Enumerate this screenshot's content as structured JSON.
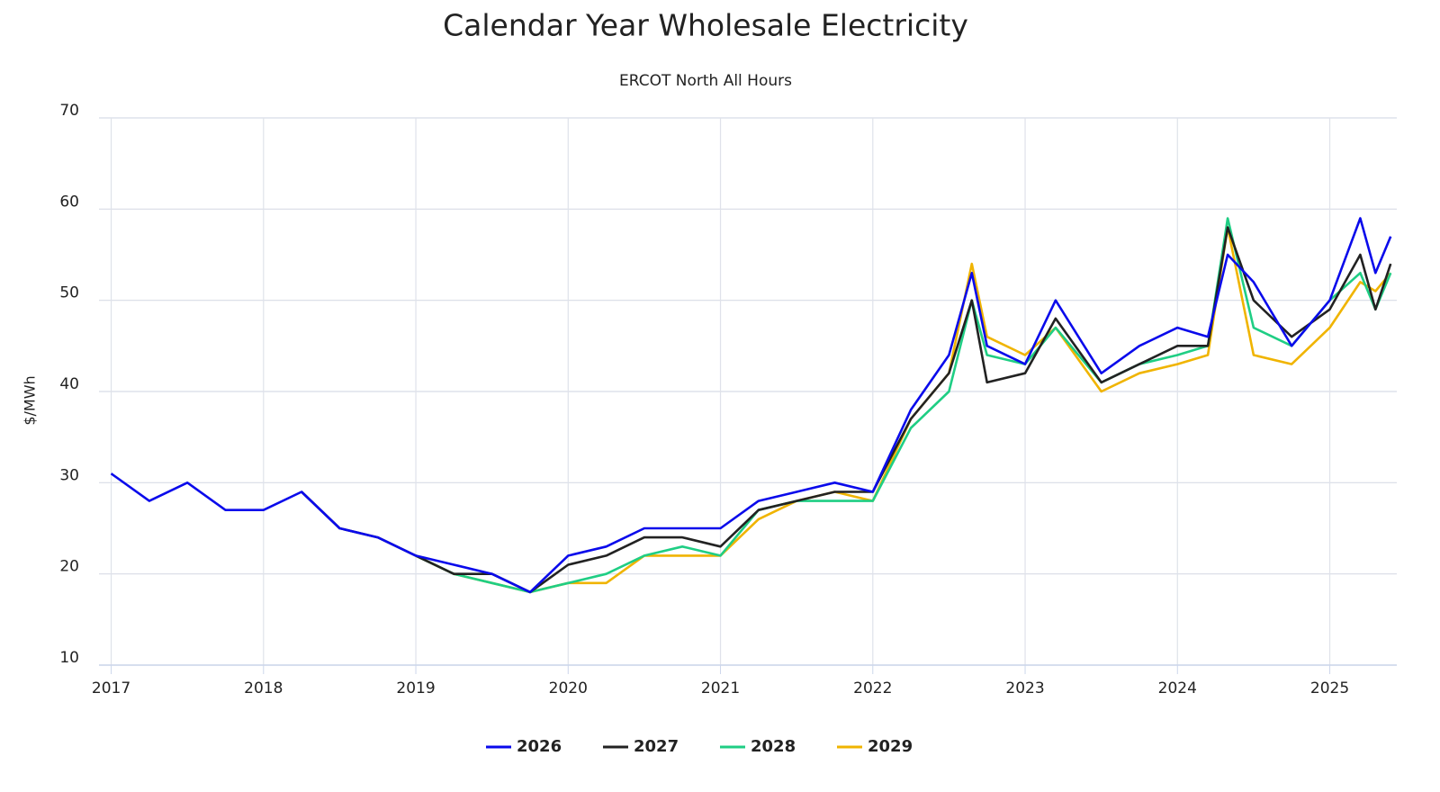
{
  "chart_data": {
    "type": "line",
    "title": "Calendar Year Wholesale Electricity",
    "subtitle": "ERCOT North All Hours",
    "y_label": "$/MWh",
    "x": [
      2017,
      2017.25,
      2017.5,
      2017.75,
      2018,
      2018.25,
      2018.5,
      2018.75,
      2019,
      2019.25,
      2019.5,
      2019.75,
      2020,
      2020.25,
      2020.5,
      2020.75,
      2021,
      2021.25,
      2021.5,
      2021.75,
      2022,
      2022.25,
      2022.5,
      2022.65,
      2022.75,
      2023,
      2023.2,
      2023.5,
      2023.75,
      2024,
      2024.2,
      2024.33,
      2024.5,
      2024.75,
      2025,
      2025.2,
      2025.3,
      2025.4
    ],
    "series": [
      {
        "name": "2026",
        "color": "#0a0aeb",
        "values": [
          31,
          28,
          30,
          27,
          27,
          29,
          25,
          24,
          22,
          21,
          20,
          18,
          22,
          23,
          25,
          25,
          25,
          28,
          29,
          30,
          29,
          38,
          44,
          53,
          45,
          43,
          50,
          42,
          45,
          47,
          46,
          55,
          52,
          45,
          50,
          59,
          53,
          57
        ]
      },
      {
        "name": "2027",
        "color": "#222222",
        "values": [
          null,
          null,
          null,
          null,
          null,
          29,
          25,
          24,
          22,
          20,
          20,
          18,
          21,
          22,
          24,
          24,
          23,
          27,
          28,
          29,
          29,
          37,
          42,
          50,
          41,
          42,
          48,
          41,
          43,
          45,
          45,
          58,
          50,
          46,
          49,
          55,
          49,
          54
        ]
      },
      {
        "name": "2028",
        "color": "#1fce84",
        "values": [
          null,
          null,
          null,
          null,
          null,
          null,
          null,
          null,
          22,
          20,
          19,
          18,
          19,
          20,
          22,
          23,
          22,
          27,
          28,
          28,
          28,
          36,
          40,
          50,
          44,
          43,
          47,
          41,
          43,
          44,
          45,
          59,
          47,
          45,
          50,
          53,
          49,
          53
        ]
      },
      {
        "name": "2029",
        "color": "#f0b400",
        "values": [
          null,
          null,
          null,
          null,
          null,
          null,
          null,
          null,
          22,
          20,
          19,
          18,
          19,
          19,
          22,
          22,
          22,
          26,
          28,
          29,
          28,
          37,
          42,
          54,
          46,
          44,
          47,
          40,
          42,
          43,
          44,
          58,
          44,
          43,
          47,
          52,
          51,
          53
        ]
      }
    ],
    "xlim": [
      2016.92,
      2025.44
    ],
    "xticks": [
      2017,
      2018,
      2019,
      2020,
      2021,
      2022,
      2023,
      2024,
      2025
    ],
    "ylim": [
      10,
      70
    ],
    "yticks": [
      10,
      20,
      30,
      40,
      50,
      60,
      70
    ],
    "grid": true,
    "legend": "bottom"
  }
}
